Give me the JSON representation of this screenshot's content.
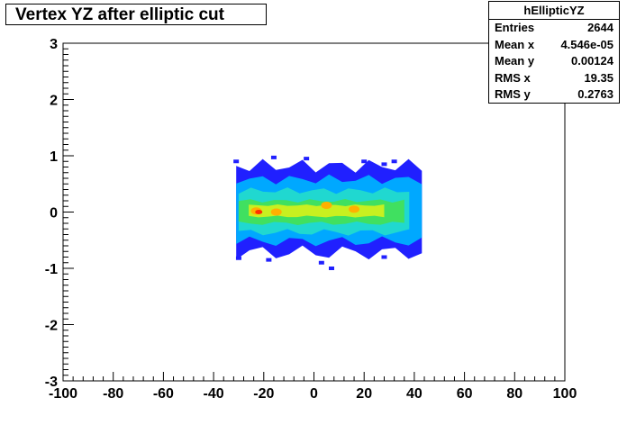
{
  "chart_data": {
    "type": "heatmap",
    "title": "Vertex YZ after elliptic cut",
    "xlabel": "",
    "ylabel": "",
    "xlim": [
      -100,
      100
    ],
    "ylim": [
      -3,
      3
    ],
    "x_ticks": [
      "-100",
      "-80",
      "-60",
      "-40",
      "-20",
      "0",
      "20",
      "40",
      "60",
      "80",
      "100"
    ],
    "y_ticks": [
      "3",
      "2",
      "1",
      "0",
      "-1",
      "-2",
      "-3"
    ],
    "colorscale": [
      "#2020ff",
      "#00a8ff",
      "#20d8d0",
      "#40e060",
      "#c8f020",
      "#ffb000",
      "#ff3000"
    ],
    "blobs": [
      {
        "level": 0,
        "x": [
          -31,
          43
        ],
        "y": [
          -0.72,
          0.82
        ]
      },
      {
        "level": 1,
        "x": [
          -31,
          43
        ],
        "y": [
          -0.52,
          0.58
        ]
      },
      {
        "level": 2,
        "x": [
          -30,
          38
        ],
        "y": [
          -0.36,
          0.38
        ]
      },
      {
        "level": 3,
        "x": [
          -30,
          36
        ],
        "y": [
          -0.2,
          0.2
        ]
      },
      {
        "level": 4,
        "x": [
          -26,
          28
        ],
        "y": [
          -0.08,
          0.12
        ]
      }
    ],
    "hotspots": [
      {
        "level": 5,
        "x": -23,
        "y": 0.02
      },
      {
        "level": 5,
        "x": -15,
        "y": 0.0
      },
      {
        "level": 5,
        "x": 5,
        "y": 0.12
      },
      {
        "level": 5,
        "x": 16,
        "y": 0.05
      },
      {
        "level": 6,
        "x": -22,
        "y": 0.0
      }
    ],
    "outliers": [
      {
        "x": -31,
        "y": 0.9
      },
      {
        "x": -16,
        "y": 0.97
      },
      {
        "x": -3,
        "y": 0.95
      },
      {
        "x": 20,
        "y": 0.9
      },
      {
        "x": 28,
        "y": 0.85
      },
      {
        "x": 32,
        "y": 0.9
      },
      {
        "x": -30,
        "y": -0.82
      },
      {
        "x": -18,
        "y": -0.85
      },
      {
        "x": 7,
        "y": -1.0
      },
      {
        "x": 28,
        "y": -0.8
      },
      {
        "x": 3,
        "y": -0.9
      }
    ]
  },
  "stats": {
    "name": "hEllipticYZ",
    "rows": [
      {
        "label": "Entries",
        "value": "2644"
      },
      {
        "label": "Mean x",
        "value": "4.546e-05"
      },
      {
        "label": "Mean y",
        "value": "0.00124"
      },
      {
        "label": "RMS x",
        "value": "19.35"
      },
      {
        "label": "RMS y",
        "value": "0.2763"
      }
    ]
  }
}
